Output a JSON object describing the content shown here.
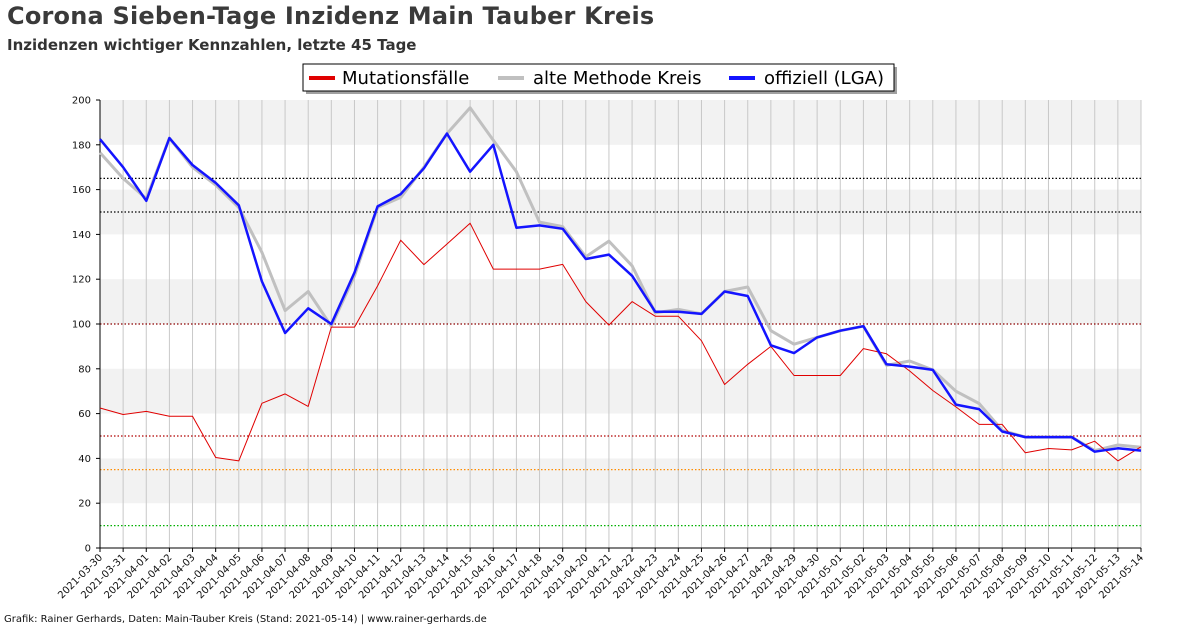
{
  "header": {
    "title": "Corona Sieben-Tage Inzidenz Main Tauber Kreis",
    "subtitle": "Inzidenzen wichtiger Kennzahlen, letzte 45 Tage"
  },
  "footer": {
    "credit": "Grafik: Rainer Gerhards, Daten: Main-Tauber Kreis (Stand: 2021-05-14) | www.rainer-gerhards.de"
  },
  "colors": {
    "mutation": "#e00000",
    "old_method": "#c0c0c0",
    "official": "#1414ff",
    "band": "#f2f2f2",
    "grid": "#c8c8c8"
  },
  "chart_data": {
    "type": "line",
    "categories": [
      "2021-03-30",
      "2021-03-31",
      "2021-04-01",
      "2021-04-02",
      "2021-04-03",
      "2021-04-04",
      "2021-04-05",
      "2021-04-06",
      "2021-04-07",
      "2021-04-08",
      "2021-04-09",
      "2021-04-10",
      "2021-04-11",
      "2021-04-12",
      "2021-04-13",
      "2021-04-14",
      "2021-04-15",
      "2021-04-16",
      "2021-04-17",
      "2021-04-18",
      "2021-04-19",
      "2021-04-20",
      "2021-04-21",
      "2021-04-22",
      "2021-04-23",
      "2021-04-24",
      "2021-04-25",
      "2021-04-26",
      "2021-04-27",
      "2021-04-28",
      "2021-04-29",
      "2021-04-30",
      "2021-05-01",
      "2021-05-02",
      "2021-05-03",
      "2021-05-04",
      "2021-05-05",
      "2021-05-06",
      "2021-05-07",
      "2021-05-08",
      "2021-05-09",
      "2021-05-10",
      "2021-05-11",
      "2021-05-12",
      "2021-05-13",
      "2021-05-14"
    ],
    "ylim": [
      0,
      200
    ],
    "yticks": [
      0,
      20,
      40,
      60,
      80,
      100,
      120,
      140,
      160,
      180,
      200
    ],
    "grid": true,
    "legend_position": "top-center",
    "series": [
      {
        "key": "mutation",
        "name": "Mutationsfälle",
        "color": "#e00000",
        "values": [
          62.5,
          59.6,
          61.0,
          58.8,
          58.8,
          40.4,
          38.9,
          64.6,
          68.8,
          63.2,
          98.6,
          98.6,
          117.0,
          137.4,
          126.5,
          135.7,
          145.0,
          124.5,
          124.5,
          124.5,
          126.6,
          110.0,
          99.5,
          110.0,
          103.5,
          103.5,
          92.5,
          73.0,
          82.0,
          90.0,
          77.0,
          77.0,
          77.0,
          89.0,
          86.7,
          79.0,
          70.3,
          63.0,
          55.2,
          55.2,
          42.5,
          44.4,
          43.8,
          47.7,
          38.9,
          45.2
        ]
      },
      {
        "key": "old_method",
        "name": "alte Methode Kreis",
        "color": "#c0c0c0",
        "values": [
          176.5,
          165.0,
          156.0,
          183.0,
          170.0,
          162.0,
          152.0,
          132.0,
          106.0,
          114.5,
          99.0,
          121.5,
          152.0,
          156.5,
          170.0,
          185.0,
          196.5,
          182.0,
          168.0,
          145.5,
          143.5,
          130.0,
          137.0,
          126.0,
          105.0,
          106.5,
          104.5,
          114.5,
          116.5,
          97.0,
          91.0,
          94.0,
          97.0,
          99.0,
          81.5,
          83.5,
          79.5,
          70.0,
          64.5,
          52.5,
          49.5,
          49.5,
          49.5,
          43.5,
          46.0,
          45.0
        ]
      },
      {
        "key": "official",
        "name": "offiziell (LGA)",
        "color": "#1414ff",
        "values": [
          182.5,
          170.0,
          155.0,
          183.0,
          171.0,
          163.0,
          153.0,
          119.0,
          96.0,
          107.0,
          100.0,
          123.0,
          152.5,
          158.0,
          169.5,
          185.0,
          168.0,
          180.0,
          143.0,
          144.0,
          142.5,
          129.0,
          131.0,
          121.5,
          105.5,
          105.5,
          104.5,
          114.5,
          112.5,
          90.5,
          87.0,
          94.0,
          97.0,
          99.0,
          82.0,
          81.0,
          79.5,
          64.0,
          62.0,
          52.0,
          49.5,
          49.5,
          49.5,
          43.0,
          44.5,
          43.5
        ]
      }
    ],
    "reference_lines": [
      {
        "y": 165,
        "color": "#000000"
      },
      {
        "y": 150,
        "color": "#000000"
      },
      {
        "y": 100,
        "color": "#8b0000"
      },
      {
        "y": 50,
        "color": "#b00000"
      },
      {
        "y": 35,
        "color": "#ff8c00"
      },
      {
        "y": 10,
        "color": "#00b000"
      }
    ]
  }
}
